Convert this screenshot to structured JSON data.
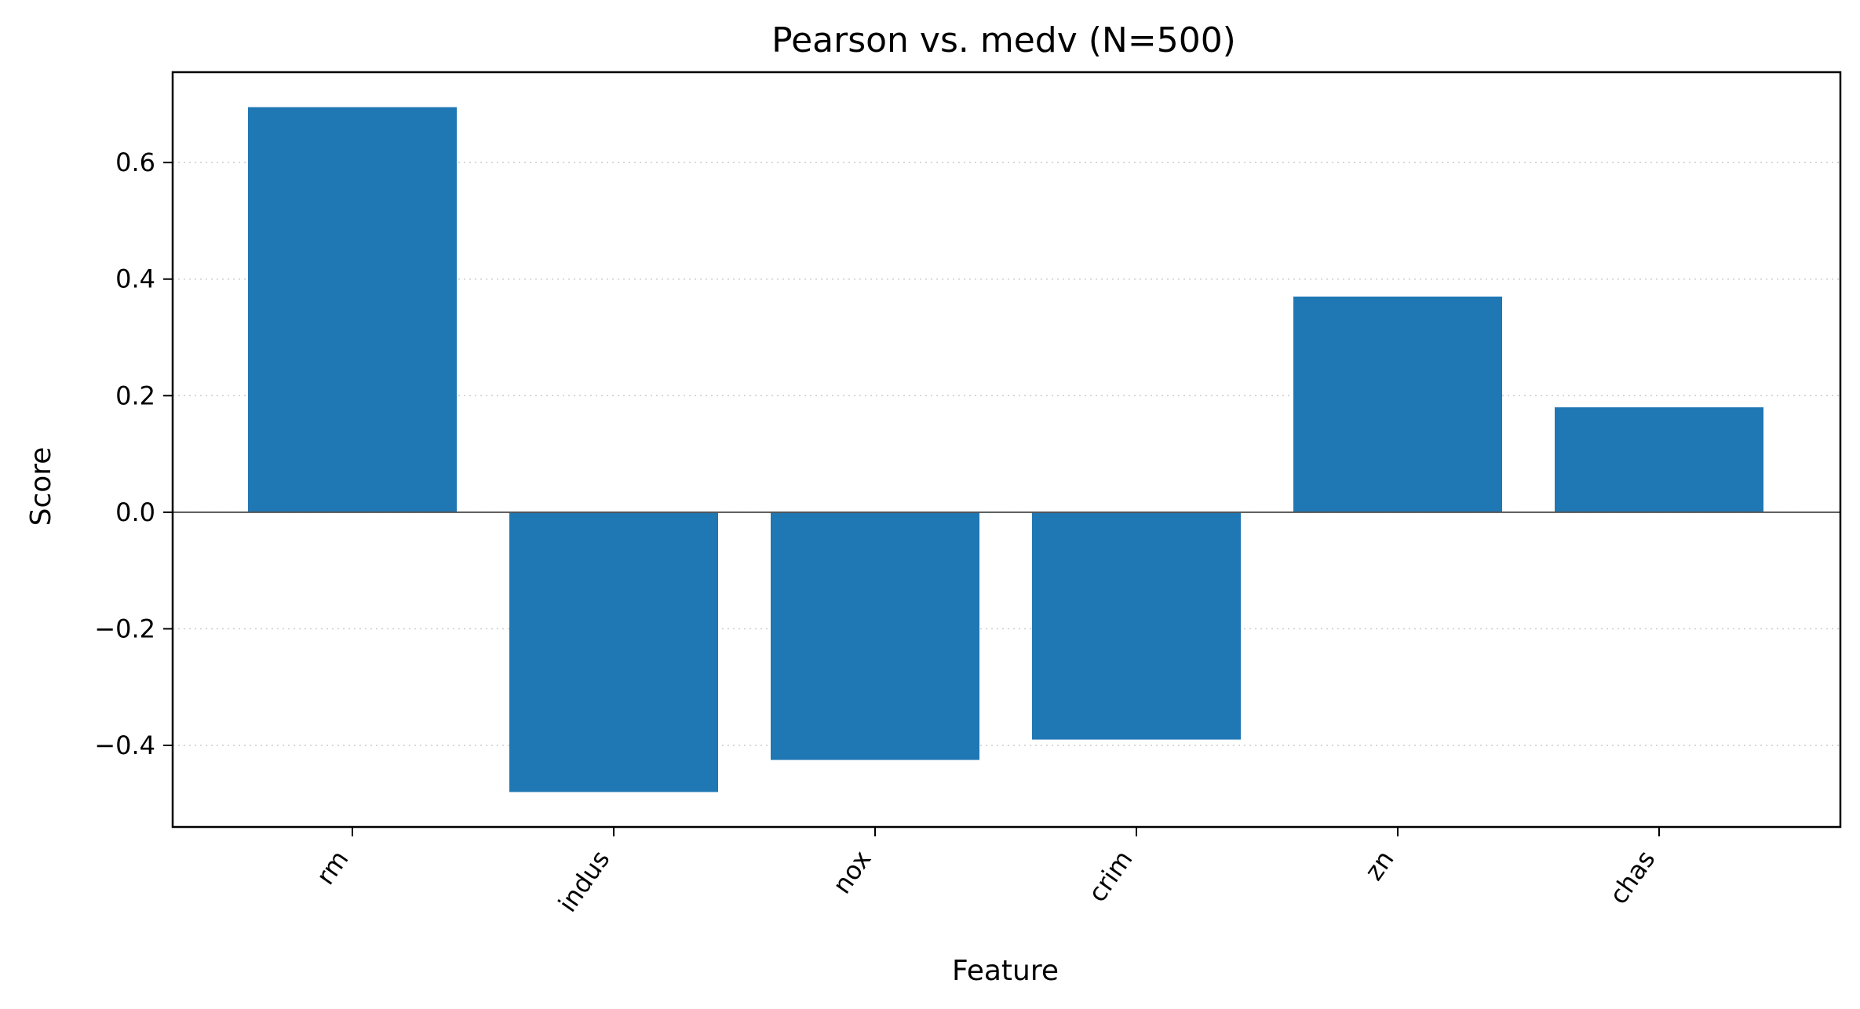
{
  "chart_data": {
    "type": "bar",
    "title": "Pearson vs. medv  (N=500)",
    "xlabel": "Feature",
    "ylabel": "Score",
    "categories": [
      "rm",
      "indus",
      "nox",
      "crim",
      "zn",
      "chas"
    ],
    "values": [
      0.695,
      -0.48,
      -0.425,
      -0.39,
      0.37,
      0.18
    ],
    "ylim": [
      -0.54,
      0.755
    ],
    "yticks": [
      0.6,
      0.4,
      0.2,
      0.0,
      -0.2,
      -0.4
    ],
    "ytick_labels": [
      "0.6",
      "0.4",
      "0.2",
      "0.0",
      "−0.2",
      "−0.4"
    ],
    "grid": "horizontal-dotted",
    "legend": "none",
    "colors": {
      "bar": "#1f77b4",
      "grid": "#cccccc",
      "zero_line": "#555555",
      "frame": "#000000"
    }
  }
}
